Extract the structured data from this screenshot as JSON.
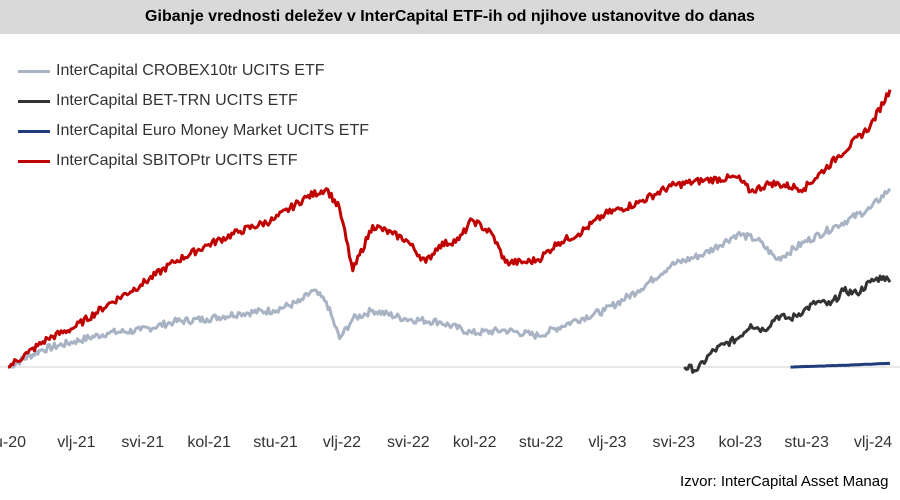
{
  "header": {
    "title": "Gibanje vrednosti deleževa v InterCapital ETF-ih od njihove ustanovitve do danas"
  },
  "source": "Izvor: InterCapital Asset Manag",
  "chart_data": {
    "type": "line",
    "title": "Gibanje vrednosti deležev v InterCapital ETF-ih od njihove ustanovitve do danas",
    "xlabel": "",
    "ylabel": "",
    "x_ticks": [
      "u-20",
      "vlj-21",
      "svi-21",
      "kol-21",
      "stu-21",
      "vlj-22",
      "svi-22",
      "kol-22",
      "stu-22",
      "vlj-23",
      "svi-23",
      "kol-23",
      "stu-23",
      "vlj-24"
    ],
    "x_range": [
      0,
      13.3
    ],
    "y_range": [
      0,
      100
    ],
    "grid": false,
    "legend_position": "top-left",
    "series": [
      {
        "name": "InterCapital CROBEX10tr UCITS ETF",
        "color": "#a8b3c4",
        "x": [
          0,
          0.5,
          1,
          1.5,
          2,
          2.5,
          3,
          3.5,
          4,
          4.4,
          4.6,
          4.8,
          5.0,
          5.2,
          5.5,
          6,
          6.5,
          7,
          7.5,
          8,
          8.5,
          9,
          9.5,
          10,
          10.5,
          11,
          11.3,
          11.6,
          12,
          12.5,
          13,
          13.3
        ],
        "y": [
          0,
          6,
          9,
          12,
          13,
          16,
          17,
          19,
          20,
          23,
          27,
          23,
          10,
          17,
          20,
          17,
          16,
          12,
          13,
          11,
          16,
          20,
          27,
          36,
          40,
          47,
          45,
          38,
          44,
          50,
          56,
          63
        ]
      },
      {
        "name": "InterCapital BET-TRN UCITS ETF",
        "color": "#333333",
        "x": [
          10.2,
          10.4,
          10.6,
          10.8,
          11.0,
          11.2,
          11.4,
          11.6,
          11.8,
          12.0,
          12.2,
          12.4,
          12.6,
          12.8,
          13.0,
          13.2,
          13.3
        ],
        "y": [
          0,
          -1,
          5,
          8,
          10,
          15,
          13,
          18,
          17,
          20,
          23,
          22,
          27,
          26,
          30,
          32,
          30
        ]
      },
      {
        "name": "InterCapital Euro Money Market UCITS ETF",
        "color": "#1f3d7a",
        "x": [
          11.8,
          12.2,
          12.6,
          13.0,
          13.3
        ],
        "y": [
          0,
          0.3,
          0.6,
          1.0,
          1.3
        ]
      },
      {
        "name": "InterCapital SBITOPtr UCITS ETF",
        "color": "#c00000",
        "x": [
          0,
          0.3,
          0.6,
          1.0,
          1.5,
          2.0,
          2.5,
          3.0,
          3.5,
          4.0,
          4.5,
          4.8,
          5.0,
          5.2,
          5.5,
          5.8,
          6.0,
          6.3,
          6.5,
          6.8,
          7.0,
          7.3,
          7.5,
          7.8,
          8.0,
          8.3,
          8.6,
          9.0,
          9.5,
          10.0,
          10.5,
          11.0,
          11.2,
          11.5,
          12.0,
          12.5,
          13.0,
          13.3
        ],
        "y": [
          0,
          5,
          10,
          14,
          22,
          29,
          37,
          43,
          48,
          52,
          60,
          63,
          56,
          34,
          50,
          47,
          45,
          37,
          43,
          45,
          52,
          47,
          37,
          37,
          38,
          44,
          47,
          54,
          58,
          64,
          66,
          67,
          62,
          65,
          63,
          74,
          85,
          98
        ]
      }
    ]
  }
}
